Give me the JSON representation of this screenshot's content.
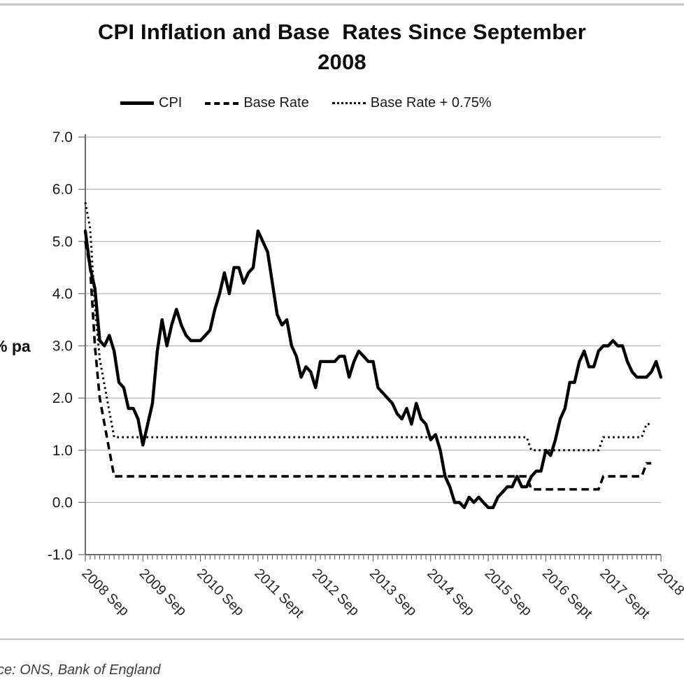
{
  "page": {
    "title_line1": "CPI Inflation and Base  Rates Since September",
    "title_line2": "2008",
    "y_axis_label": "% pa",
    "source_text": "ce: ONS, Bank of England"
  },
  "legend": [
    {
      "label": "CPI",
      "style": "solid"
    },
    {
      "label": "Base Rate",
      "style": "dashed"
    },
    {
      "label": "Base Rate + 0.75%",
      "style": "dotted"
    }
  ],
  "chart_data": {
    "type": "line",
    "title": "CPI Inflation and Base  Rates Since September 2008",
    "xlabel": "",
    "ylabel": "% pa",
    "ylim": [
      -1.0,
      7.0
    ],
    "grid": "horizontal",
    "legend_position": "top",
    "x_unit": "month",
    "x_range": [
      "2008 Sep",
      "2018 Sep"
    ],
    "y_tick_labels": [
      "7.0",
      "6.0",
      "5.0",
      "4.0",
      "3.0",
      "2.0",
      "1.0",
      "0.0",
      "-1.0"
    ],
    "y_tick_values": [
      7,
      6,
      5,
      4,
      3,
      2,
      1,
      0,
      -1
    ],
    "x_tick_labels": [
      "2008 Sep",
      "2009 Sep",
      "2010 Sep",
      "2011 Sept",
      "2012 Sep",
      "2013 Sep",
      "2014 Sep",
      "2015 Sep",
      "2016 Sept",
      "2017 Sept",
      "2018"
    ],
    "x_tick_month_index": [
      0,
      12,
      24,
      36,
      48,
      60,
      72,
      84,
      96,
      108,
      120
    ],
    "months_total": 121,
    "colors": {
      "series": "#000000",
      "gridline": "#a8a8a8",
      "axis": "#6b6b6b"
    },
    "series": [
      {
        "name": "CPI",
        "line_style": "solid",
        "values": [
          5.2,
          4.5,
          4.1,
          3.1,
          3.0,
          3.2,
          2.9,
          2.3,
          2.2,
          1.8,
          1.8,
          1.6,
          1.1,
          1.5,
          1.9,
          2.9,
          3.5,
          3.0,
          3.4,
          3.7,
          3.4,
          3.2,
          3.1,
          3.1,
          3.1,
          3.2,
          3.3,
          3.7,
          4.0,
          4.4,
          4.0,
          4.5,
          4.5,
          4.2,
          4.4,
          4.5,
          5.2,
          5.0,
          4.8,
          4.2,
          3.6,
          3.4,
          3.5,
          3.0,
          2.8,
          2.4,
          2.6,
          2.5,
          2.2,
          2.7,
          2.7,
          2.7,
          2.7,
          2.8,
          2.8,
          2.4,
          2.7,
          2.9,
          2.8,
          2.7,
          2.7,
          2.2,
          2.1,
          2.0,
          1.9,
          1.7,
          1.6,
          1.8,
          1.5,
          1.9,
          1.6,
          1.5,
          1.2,
          1.3,
          1.0,
          0.5,
          0.3,
          0.0,
          0.0,
          -0.1,
          0.1,
          0.0,
          0.1,
          0.0,
          -0.1,
          -0.1,
          0.1,
          0.2,
          0.3,
          0.3,
          0.5,
          0.3,
          0.3,
          0.5,
          0.6,
          0.6,
          1.0,
          0.9,
          1.2,
          1.6,
          1.8,
          2.3,
          2.3,
          2.7,
          2.9,
          2.6,
          2.6,
          2.9,
          3.0,
          3.0,
          3.1,
          3.0,
          3.0,
          2.7,
          2.5,
          2.4,
          2.4,
          2.4,
          2.5,
          2.7,
          2.4
        ]
      },
      {
        "name": "Base Rate",
        "line_style": "dashed",
        "values": [
          5.0,
          4.5,
          3.0,
          2.0,
          1.5,
          1.0,
          0.5,
          0.5,
          0.5,
          0.5,
          0.5,
          0.5,
          0.5,
          0.5,
          0.5,
          0.5,
          0.5,
          0.5,
          0.5,
          0.5,
          0.5,
          0.5,
          0.5,
          0.5,
          0.5,
          0.5,
          0.5,
          0.5,
          0.5,
          0.5,
          0.5,
          0.5,
          0.5,
          0.5,
          0.5,
          0.5,
          0.5,
          0.5,
          0.5,
          0.5,
          0.5,
          0.5,
          0.5,
          0.5,
          0.5,
          0.5,
          0.5,
          0.5,
          0.5,
          0.5,
          0.5,
          0.5,
          0.5,
          0.5,
          0.5,
          0.5,
          0.5,
          0.5,
          0.5,
          0.5,
          0.5,
          0.5,
          0.5,
          0.5,
          0.5,
          0.5,
          0.5,
          0.5,
          0.5,
          0.5,
          0.5,
          0.5,
          0.5,
          0.5,
          0.5,
          0.5,
          0.5,
          0.5,
          0.5,
          0.5,
          0.5,
          0.5,
          0.5,
          0.5,
          0.5,
          0.5,
          0.5,
          0.5,
          0.5,
          0.5,
          0.5,
          0.5,
          0.5,
          0.25,
          0.25,
          0.25,
          0.25,
          0.25,
          0.25,
          0.25,
          0.25,
          0.25,
          0.25,
          0.25,
          0.25,
          0.25,
          0.25,
          0.25,
          0.5,
          0.5,
          0.5,
          0.5,
          0.5,
          0.5,
          0.5,
          0.5,
          0.5,
          0.75,
          0.75
        ]
      },
      {
        "name": "Base Rate + 0.75%",
        "line_style": "dotted",
        "values": [
          5.75,
          5.25,
          3.75,
          2.75,
          2.25,
          1.75,
          1.25,
          1.25,
          1.25,
          1.25,
          1.25,
          1.25,
          1.25,
          1.25,
          1.25,
          1.25,
          1.25,
          1.25,
          1.25,
          1.25,
          1.25,
          1.25,
          1.25,
          1.25,
          1.25,
          1.25,
          1.25,
          1.25,
          1.25,
          1.25,
          1.25,
          1.25,
          1.25,
          1.25,
          1.25,
          1.25,
          1.25,
          1.25,
          1.25,
          1.25,
          1.25,
          1.25,
          1.25,
          1.25,
          1.25,
          1.25,
          1.25,
          1.25,
          1.25,
          1.25,
          1.25,
          1.25,
          1.25,
          1.25,
          1.25,
          1.25,
          1.25,
          1.25,
          1.25,
          1.25,
          1.25,
          1.25,
          1.25,
          1.25,
          1.25,
          1.25,
          1.25,
          1.25,
          1.25,
          1.25,
          1.25,
          1.25,
          1.25,
          1.25,
          1.25,
          1.25,
          1.25,
          1.25,
          1.25,
          1.25,
          1.25,
          1.25,
          1.25,
          1.25,
          1.25,
          1.25,
          1.25,
          1.25,
          1.25,
          1.25,
          1.25,
          1.25,
          1.25,
          1.0,
          1.0,
          1.0,
          1.0,
          1.0,
          1.0,
          1.0,
          1.0,
          1.0,
          1.0,
          1.0,
          1.0,
          1.0,
          1.0,
          1.0,
          1.25,
          1.25,
          1.25,
          1.25,
          1.25,
          1.25,
          1.25,
          1.25,
          1.25,
          1.5,
          1.5
        ]
      }
    ]
  }
}
